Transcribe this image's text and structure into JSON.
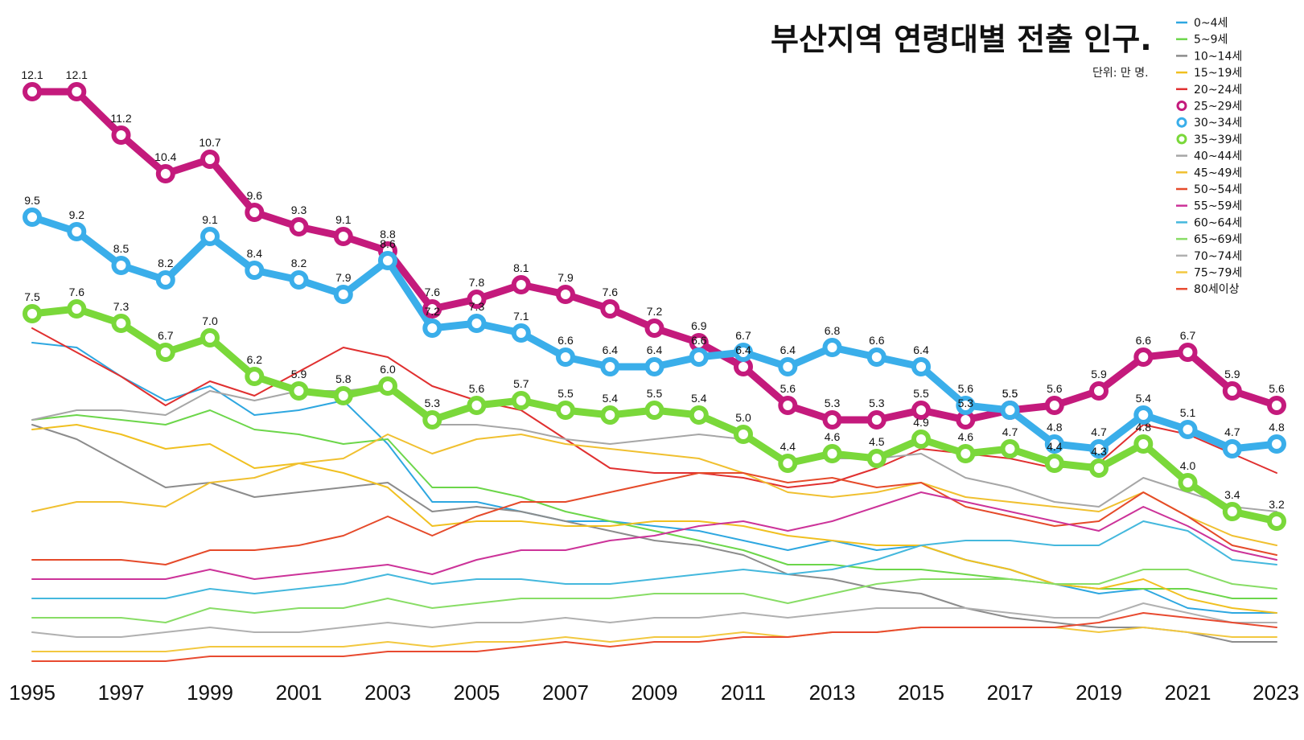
{
  "chart_data": {
    "type": "line",
    "title": "부산지역 연령대별 전출 인구.",
    "unit_label": "단위: 만 명.",
    "xlabel": "",
    "ylabel": "",
    "ylim": [
      0,
      12.5
    ],
    "x": [
      1995,
      1996,
      1997,
      1998,
      1999,
      2000,
      2001,
      2002,
      2003,
      2004,
      2005,
      2006,
      2007,
      2008,
      2009,
      2010,
      2011,
      2012,
      2013,
      2014,
      2015,
      2016,
      2017,
      2018,
      2019,
      2020,
      2021,
      2022,
      2023
    ],
    "x_tick_labels": [
      "1995",
      "1997",
      "1999",
      "2001",
      "2003",
      "2005",
      "2007",
      "2009",
      "2011",
      "2013",
      "2015",
      "2017",
      "2019",
      "2021",
      "2023"
    ],
    "legend_position": "top-right",
    "series": [
      {
        "name": "0~4세",
        "color": "#2ea7e0",
        "highlight": false,
        "values": [
          6.9,
          6.8,
          6.2,
          5.7,
          6.0,
          5.4,
          5.5,
          5.7,
          4.8,
          3.6,
          3.6,
          3.4,
          3.2,
          3.2,
          3.1,
          3.0,
          2.8,
          2.6,
          2.8,
          2.6,
          2.7,
          2.4,
          2.2,
          1.9,
          1.7,
          1.8,
          1.4,
          1.3,
          1.3
        ]
      },
      {
        "name": "5~9세",
        "color": "#6cd64a",
        "highlight": false,
        "values": [
          5.3,
          5.4,
          5.3,
          5.2,
          5.5,
          5.1,
          5.0,
          4.8,
          4.9,
          3.9,
          3.9,
          3.7,
          3.4,
          3.2,
          3.0,
          2.8,
          2.6,
          2.3,
          2.3,
          2.2,
          2.2,
          2.1,
          2.0,
          1.9,
          1.8,
          1.8,
          1.8,
          1.6,
          1.6
        ]
      },
      {
        "name": "10~14세",
        "color": "#8c8c8c",
        "highlight": false,
        "values": [
          5.2,
          4.9,
          4.4,
          3.9,
          4.0,
          3.7,
          3.8,
          3.9,
          4.0,
          3.4,
          3.5,
          3.4,
          3.2,
          3.0,
          2.8,
          2.7,
          2.5,
          2.1,
          2.0,
          1.8,
          1.7,
          1.4,
          1.2,
          1.1,
          1.0,
          1.0,
          0.9,
          0.7,
          0.7
        ]
      },
      {
        "name": "15~19세",
        "color": "#f0c020",
        "highlight": false,
        "values": [
          5.1,
          5.2,
          5.0,
          4.7,
          4.8,
          4.3,
          4.4,
          4.2,
          3.9,
          3.1,
          3.2,
          3.2,
          3.1,
          3.1,
          3.2,
          3.2,
          3.1,
          2.9,
          2.8,
          2.7,
          2.7,
          2.4,
          2.2,
          1.9,
          1.8,
          2.0,
          1.6,
          1.4,
          1.3
        ]
      },
      {
        "name": "20~24세",
        "color": "#e03030",
        "highlight": false,
        "values": [
          7.2,
          6.7,
          6.2,
          5.6,
          6.1,
          5.8,
          6.3,
          6.8,
          6.6,
          6.0,
          5.7,
          5.5,
          4.9,
          4.3,
          4.2,
          4.2,
          4.1,
          3.9,
          4.0,
          4.3,
          4.7,
          4.6,
          4.5,
          4.3,
          4.4,
          5.2,
          5.0,
          4.6,
          4.2
        ]
      },
      {
        "name": "25~29세",
        "color": "#c41a7c",
        "highlight": true,
        "labels": true,
        "values": [
          12.1,
          12.1,
          11.2,
          10.4,
          10.7,
          9.6,
          9.3,
          9.1,
          8.8,
          7.6,
          7.8,
          8.1,
          7.9,
          7.6,
          7.2,
          6.9,
          6.4,
          5.6,
          5.3,
          5.3,
          5.5,
          5.3,
          5.5,
          5.6,
          5.9,
          6.6,
          6.7,
          5.9,
          5.6
        ]
      },
      {
        "name": "30~34세",
        "color": "#3aaeea",
        "highlight": true,
        "labels": true,
        "values": [
          9.5,
          9.2,
          8.5,
          8.2,
          9.1,
          8.4,
          8.2,
          7.9,
          8.6,
          7.2,
          7.3,
          7.1,
          6.6,
          6.4,
          6.4,
          6.6,
          6.7,
          6.4,
          6.8,
          6.6,
          6.4,
          5.6,
          5.5,
          4.8,
          4.7,
          5.4,
          5.1,
          4.7,
          4.8
        ]
      },
      {
        "name": "35~39세",
        "color": "#7ad83a",
        "highlight": true,
        "labels": true,
        "values": [
          7.5,
          7.6,
          7.3,
          6.7,
          7.0,
          6.2,
          5.9,
          5.8,
          6.0,
          5.3,
          5.6,
          5.7,
          5.5,
          5.4,
          5.5,
          5.4,
          5.0,
          4.4,
          4.6,
          4.5,
          4.9,
          4.6,
          4.7,
          4.4,
          4.3,
          4.8,
          4.0,
          3.4,
          3.2
        ]
      },
      {
        "name": "40~44세",
        "color": "#a6a6a6",
        "highlight": false,
        "values": [
          5.3,
          5.5,
          5.5,
          5.4,
          5.9,
          5.7,
          5.9,
          5.9,
          6.0,
          5.2,
          5.2,
          5.1,
          4.9,
          4.8,
          4.9,
          5.0,
          4.9,
          4.5,
          4.5,
          4.5,
          4.6,
          4.1,
          3.9,
          3.6,
          3.5,
          4.1,
          3.8,
          3.5,
          3.4
        ]
      },
      {
        "name": "45~49세",
        "color": "#f0c030",
        "highlight": false,
        "values": [
          3.4,
          3.6,
          3.6,
          3.5,
          4.0,
          4.1,
          4.4,
          4.5,
          5.0,
          4.6,
          4.9,
          5.0,
          4.8,
          4.7,
          4.6,
          4.5,
          4.2,
          3.8,
          3.7,
          3.8,
          4.0,
          3.7,
          3.6,
          3.5,
          3.4,
          3.8,
          3.3,
          2.9,
          2.7
        ]
      },
      {
        "name": "50~54세",
        "color": "#e54a2a",
        "highlight": false,
        "values": [
          2.4,
          2.4,
          2.4,
          2.3,
          2.6,
          2.6,
          2.7,
          2.9,
          3.3,
          2.9,
          3.3,
          3.6,
          3.6,
          3.8,
          4.0,
          4.2,
          4.2,
          4.0,
          4.1,
          3.9,
          4.0,
          3.5,
          3.3,
          3.1,
          3.2,
          3.8,
          3.3,
          2.7,
          2.5
        ]
      },
      {
        "name": "55~59세",
        "color": "#cc3399",
        "highlight": false,
        "values": [
          2.0,
          2.0,
          2.0,
          2.0,
          2.2,
          2.0,
          2.1,
          2.2,
          2.3,
          2.1,
          2.4,
          2.6,
          2.6,
          2.8,
          2.9,
          3.1,
          3.2,
          3.0,
          3.2,
          3.5,
          3.8,
          3.6,
          3.4,
          3.2,
          3.0,
          3.5,
          3.1,
          2.6,
          2.4
        ]
      },
      {
        "name": "60~64세",
        "color": "#44b8dd",
        "highlight": false,
        "values": [
          1.6,
          1.6,
          1.6,
          1.6,
          1.8,
          1.7,
          1.8,
          1.9,
          2.1,
          1.9,
          2.0,
          2.0,
          1.9,
          1.9,
          2.0,
          2.1,
          2.2,
          2.1,
          2.2,
          2.4,
          2.7,
          2.8,
          2.8,
          2.7,
          2.7,
          3.2,
          3.0,
          2.4,
          2.3
        ]
      },
      {
        "name": "65~69세",
        "color": "#88dd66",
        "highlight": false,
        "values": [
          1.2,
          1.2,
          1.2,
          1.1,
          1.4,
          1.3,
          1.4,
          1.4,
          1.6,
          1.4,
          1.5,
          1.6,
          1.6,
          1.6,
          1.7,
          1.7,
          1.7,
          1.5,
          1.7,
          1.9,
          2.0,
          2.0,
          2.0,
          1.9,
          1.9,
          2.2,
          2.2,
          1.9,
          1.8
        ]
      },
      {
        "name": "70~74세",
        "color": "#b0b0b0",
        "highlight": false,
        "values": [
          0.9,
          0.8,
          0.8,
          0.9,
          1.0,
          0.9,
          0.9,
          1.0,
          1.1,
          1.0,
          1.1,
          1.1,
          1.2,
          1.1,
          1.2,
          1.2,
          1.3,
          1.2,
          1.3,
          1.4,
          1.4,
          1.4,
          1.3,
          1.2,
          1.2,
          1.5,
          1.3,
          1.1,
          1.1
        ]
      },
      {
        "name": "75~79세",
        "color": "#f2c840",
        "highlight": false,
        "values": [
          0.5,
          0.5,
          0.5,
          0.5,
          0.6,
          0.6,
          0.6,
          0.6,
          0.7,
          0.6,
          0.7,
          0.7,
          0.8,
          0.7,
          0.8,
          0.8,
          0.9,
          0.8,
          0.9,
          0.9,
          1.0,
          1.0,
          1.0,
          1.0,
          0.9,
          1.0,
          0.9,
          0.8,
          0.8
        ]
      },
      {
        "name": "80세이상",
        "color": "#e84a30",
        "highlight": false,
        "values": [
          0.3,
          0.3,
          0.3,
          0.3,
          0.4,
          0.4,
          0.4,
          0.4,
          0.5,
          0.5,
          0.5,
          0.6,
          0.7,
          0.6,
          0.7,
          0.7,
          0.8,
          0.8,
          0.9,
          0.9,
          1.0,
          1.0,
          1.0,
          1.0,
          1.1,
          1.3,
          1.2,
          1.1,
          1.0
        ]
      }
    ]
  }
}
